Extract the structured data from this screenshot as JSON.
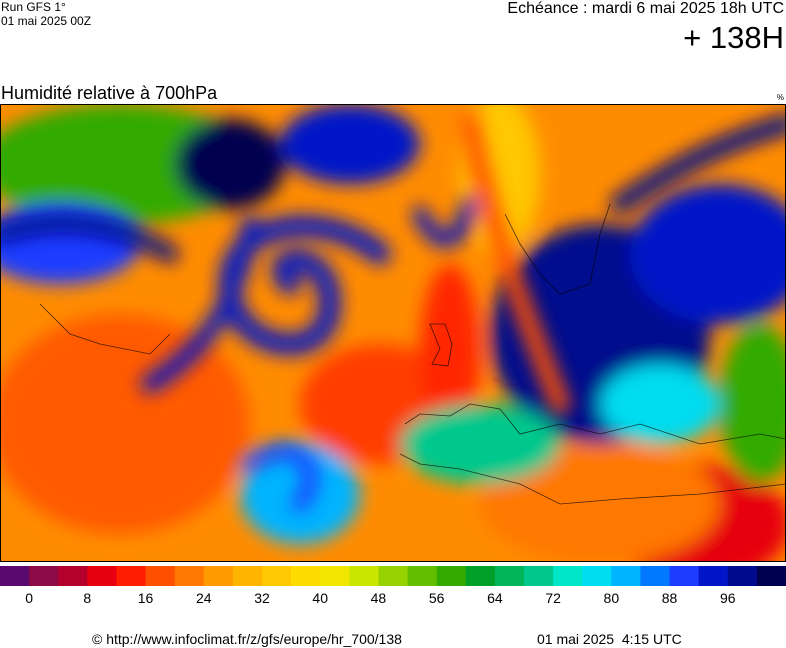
{
  "header": {
    "run": "Run GFS 1°",
    "run_date": "01 mai 2025 00Z",
    "forecast_time": "Echéance : mardi 6 mai 2025 18h UTC",
    "lead": "+ 138H",
    "title": "Humidité relative à 700hPa",
    "unit": "%"
  },
  "colorbar": {
    "colors": [
      "#5a0a6e",
      "#8c0a46",
      "#b4002d",
      "#e6000f",
      "#ff1e00",
      "#ff5000",
      "#ff7800",
      "#ff9b00",
      "#ffb400",
      "#ffc800",
      "#ffdc00",
      "#f0e600",
      "#c8e600",
      "#96d200",
      "#64be00",
      "#32aa00",
      "#00a028",
      "#00b45a",
      "#00c88c",
      "#00e6c8",
      "#00dcf0",
      "#00b4ff",
      "#0078ff",
      "#1e3cff",
      "#0014c8",
      "#000a8c",
      "#000050"
    ],
    "ticks": [
      0,
      8,
      16,
      24,
      32,
      40,
      48,
      56,
      64,
      72,
      80,
      88,
      96
    ]
  },
  "footer": {
    "credit": "© http://www.infoclimat.fr/z/gfs/europe/hr_700/138",
    "timestamp": "01 mai 2025  4:15 UTC"
  }
}
